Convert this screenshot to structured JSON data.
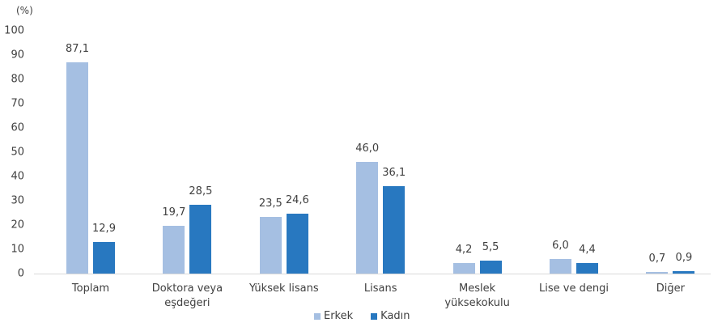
{
  "chart_data": {
    "type": "bar",
    "title": "",
    "unit_label": "(%)",
    "xlabel": "",
    "ylabel": "(%)",
    "ylim": [
      0,
      100
    ],
    "yticks": [
      "0",
      "10",
      "20",
      "30",
      "40",
      "50",
      "60",
      "70",
      "80",
      "90",
      "100"
    ],
    "categories": [
      "Toplam",
      "Doktora veya eşdeğeri",
      "Yüksek lisans",
      "Lisans",
      "Meslek yüksekokulu",
      "Lise ve dengi",
      "Diğer"
    ],
    "category_lines": [
      [
        "Toplam"
      ],
      [
        "Doktora veya",
        "eşdeğeri"
      ],
      [
        "Yüksek lisans"
      ],
      [
        "Lisans"
      ],
      [
        "Meslek",
        "yüksekokulu"
      ],
      [
        "Lise ve dengi"
      ],
      [
        "Diğer"
      ]
    ],
    "series": [
      {
        "name": "Erkek",
        "color": "#a5bfe2",
        "values": [
          87.1,
          19.7,
          23.5,
          46.0,
          4.2,
          6.0,
          0.7
        ],
        "labels": [
          "87,1",
          "19,7",
          "23,5",
          "46,0",
          "4,2",
          "6,0",
          "0,7"
        ]
      },
      {
        "name": "Kadın",
        "color": "#2878c0",
        "values": [
          12.9,
          28.5,
          24.6,
          36.1,
          5.5,
          4.4,
          0.9
        ],
        "labels": [
          "12,9",
          "28,5",
          "24,6",
          "36,1",
          "5,5",
          "4,4",
          "0,9"
        ]
      }
    ],
    "grid": false,
    "legend_position": "bottom"
  }
}
